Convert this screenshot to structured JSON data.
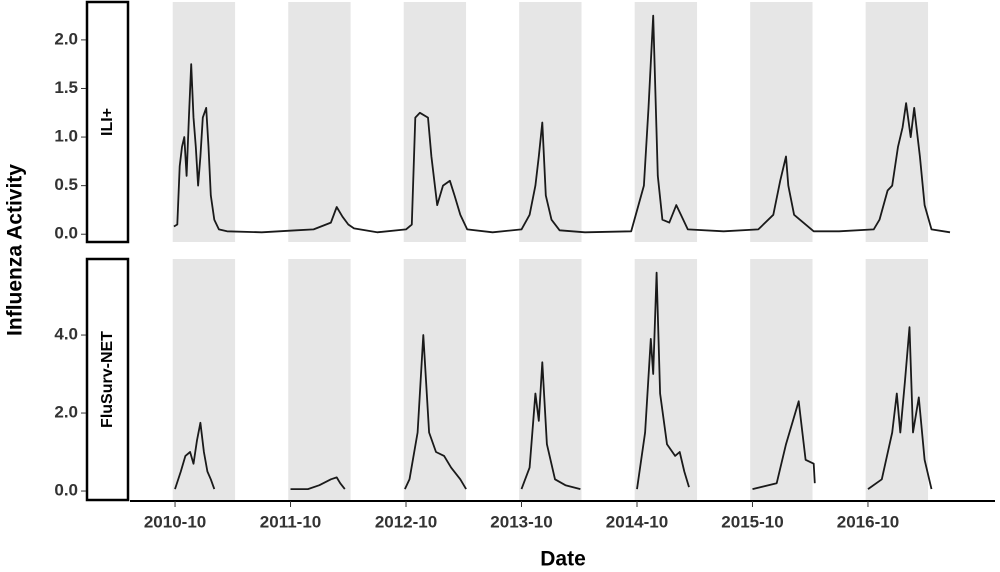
{
  "chart_data": [
    {
      "type": "line",
      "strip": "ILI+",
      "y_label": "Influenza Activity",
      "color": "#1a1a1a",
      "bands": [
        [
          2010.73,
          2011.27
        ],
        [
          2011.73,
          2012.27
        ],
        [
          2012.73,
          2013.27
        ],
        [
          2013.73,
          2014.27
        ],
        [
          2014.73,
          2015.27
        ],
        [
          2015.73,
          2016.27
        ],
        [
          2016.73,
          2017.27
        ]
      ],
      "ylim": [
        -0.08,
        2.39
      ],
      "yticks": [
        {
          "value": 0,
          "label": "0.0"
        },
        {
          "value": 0.5,
          "label": "0.5"
        },
        {
          "value": 1,
          "label": "1.0"
        },
        {
          "value": 1.5,
          "label": "1.5"
        },
        {
          "value": 2,
          "label": "2.0"
        }
      ],
      "x": [
        2010.74,
        2010.77,
        2010.79,
        2010.81,
        2010.83,
        2010.85,
        2010.87,
        2010.89,
        2010.91,
        2010.93,
        2010.95,
        2010.97,
        2010.99,
        2011.02,
        2011.04,
        2011.06,
        2011.09,
        2011.13,
        2011.2,
        2011.5,
        2011.8,
        2011.95,
        2012.1,
        2012.15,
        2012.2,
        2012.25,
        2012.3,
        2012.5,
        2012.75,
        2012.8,
        2012.83,
        2012.87,
        2012.94,
        2012.97,
        2013.02,
        2013.07,
        2013.13,
        2013.17,
        2013.22,
        2013.28,
        2013.5,
        2013.75,
        2013.82,
        2013.87,
        2013.9,
        2013.93,
        2013.96,
        2014.01,
        2014.08,
        2014.3,
        2014.7,
        2014.81,
        2014.85,
        2014.89,
        2014.93,
        2014.97,
        2015.03,
        2015.09,
        2015.13,
        2015.19,
        2015.5,
        2015.8,
        2015.93,
        2015.99,
        2016.04,
        2016.06,
        2016.11,
        2016.19,
        2016.28,
        2016.5,
        2016.8,
        2016.85,
        2016.92,
        2016.96,
        2017.01,
        2017.05,
        2017.08,
        2017.12,
        2017.15,
        2017.2,
        2017.24,
        2017.3,
        2017.46
      ],
      "values": [
        0.08,
        0.1,
        0.7,
        0.9,
        1.0,
        0.6,
        1.2,
        1.75,
        1.2,
        0.9,
        0.5,
        0.8,
        1.2,
        1.3,
        0.9,
        0.4,
        0.15,
        0.05,
        0.03,
        0.02,
        0.04,
        0.05,
        0.12,
        0.28,
        0.18,
        0.1,
        0.06,
        0.02,
        0.05,
        0.1,
        1.2,
        1.25,
        1.2,
        0.8,
        0.3,
        0.5,
        0.55,
        0.4,
        0.2,
        0.05,
        0.02,
        0.05,
        0.2,
        0.5,
        0.8,
        1.15,
        0.4,
        0.15,
        0.04,
        0.02,
        0.03,
        0.5,
        1.3,
        2.25,
        0.6,
        0.15,
        0.12,
        0.3,
        0.2,
        0.05,
        0.03,
        0.05,
        0.2,
        0.55,
        0.8,
        0.5,
        0.2,
        0.12,
        0.03,
        0.03,
        0.05,
        0.15,
        0.45,
        0.5,
        0.9,
        1.1,
        1.35,
        1.0,
        1.3,
        0.8,
        0.3,
        0.05,
        0.02
      ]
    },
    {
      "type": "line",
      "strip": "FluSurv-NET",
      "x_label": "Date",
      "color": "#1a1a1a",
      "xlim": [
        2010.36,
        2017.85
      ],
      "xticks": [
        {
          "value": 2010.75,
          "label": "2010-10"
        },
        {
          "value": 2011.75,
          "label": "2011-10"
        },
        {
          "value": 2012.75,
          "label": "2012-10"
        },
        {
          "value": 2013.75,
          "label": "2013-10"
        },
        {
          "value": 2014.75,
          "label": "2014-10"
        },
        {
          "value": 2015.75,
          "label": "2015-10"
        },
        {
          "value": 2016.75,
          "label": "2016-10"
        }
      ],
      "ylim": [
        -0.23,
        5.95
      ],
      "yticks": [
        {
          "value": 0,
          "label": "0.0"
        },
        {
          "value": 2,
          "label": "2.0"
        },
        {
          "value": 4,
          "label": "4.0"
        }
      ],
      "x": [
        2010.75,
        2010.8,
        2010.84,
        2010.88,
        2010.91,
        2010.94,
        2010.97,
        2011.0,
        2011.03,
        2011.06,
        2011.09,
        null,
        2011.75,
        2011.9,
        2012.0,
        2012.1,
        2012.15,
        2012.18,
        2012.22,
        null,
        2012.74,
        2012.78,
        2012.85,
        2012.9,
        2012.95,
        2013.01,
        2013.08,
        2013.14,
        2013.22,
        2013.27,
        null,
        2013.75,
        2013.82,
        2013.87,
        2013.9,
        2013.93,
        2013.97,
        2014.04,
        2014.13,
        2014.26,
        null,
        2014.75,
        2014.82,
        2014.87,
        2014.89,
        2014.92,
        2014.95,
        2015.01,
        2015.08,
        2015.12,
        2015.16,
        2015.2,
        null,
        2015.75,
        2015.96,
        2016.04,
        2016.15,
        2016.21,
        2016.28,
        2016.29,
        null,
        2016.75,
        2016.87,
        2016.96,
        2017.0,
        2017.03,
        2017.07,
        2017.11,
        2017.14,
        2017.19,
        2017.24,
        2017.3
      ],
      "values": [
        0.05,
        0.5,
        0.9,
        1.0,
        0.7,
        1.3,
        1.75,
        1.0,
        0.5,
        0.3,
        0.05,
        null,
        0.05,
        0.05,
        0.15,
        0.3,
        0.35,
        0.2,
        0.05,
        null,
        0.05,
        0.3,
        1.5,
        4.0,
        1.5,
        1.0,
        0.9,
        0.6,
        0.3,
        0.05,
        null,
        0.05,
        0.6,
        2.5,
        1.8,
        3.3,
        1.2,
        0.3,
        0.15,
        0.05,
        null,
        0.05,
        1.5,
        3.9,
        3.0,
        5.6,
        2.5,
        1.2,
        0.9,
        1.0,
        0.5,
        0.1,
        null,
        0.05,
        0.2,
        1.2,
        2.3,
        0.8,
        0.7,
        0.2,
        null,
        0.05,
        0.3,
        1.5,
        2.5,
        1.5,
        2.8,
        4.2,
        1.5,
        2.4,
        0.8,
        0.05
      ]
    }
  ]
}
